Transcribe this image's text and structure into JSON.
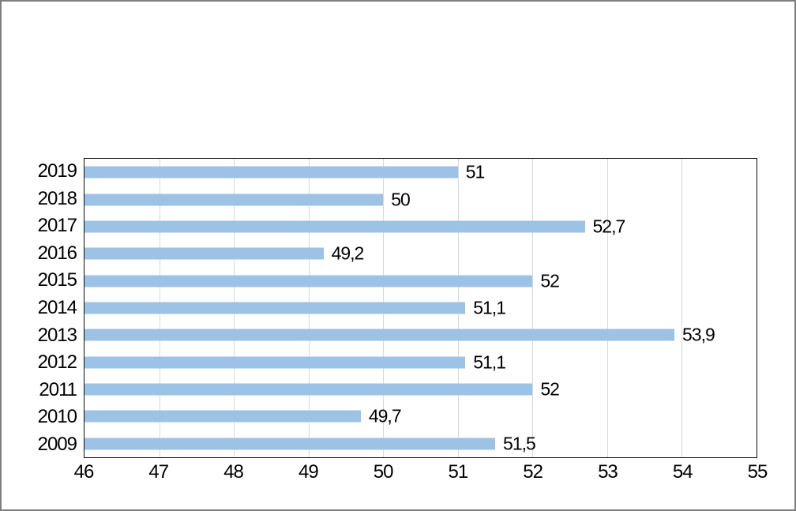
{
  "figure": {
    "background": "#ffffff",
    "outer_border_color": "#7f7f7f"
  },
  "chart_data": {
    "type": "bar",
    "orientation": "horizontal",
    "title": "",
    "xlabel": "",
    "ylabel": "",
    "categories": [
      "2019",
      "2018",
      "2017",
      "2016",
      "2015",
      "2014",
      "2013",
      "2012",
      "2011",
      "2010",
      "2009"
    ],
    "values": [
      51,
      50,
      52.7,
      49.2,
      52,
      51.1,
      53.9,
      51.1,
      52,
      49.7,
      51.5
    ],
    "value_labels": [
      "51",
      "50",
      "52,7",
      "49,2",
      "52",
      "51,1",
      "53,9",
      "51,1",
      "52",
      "49,7",
      "51,5"
    ],
    "xlim": [
      46,
      55
    ],
    "x_tick_labels": [
      "46",
      "47",
      "48",
      "49",
      "50",
      "51",
      "52",
      "53",
      "54",
      "55"
    ],
    "grid": "vertical",
    "legend": false,
    "bar_color": "#9cc2e5",
    "gridline_color": "#d9d9d9",
    "axis_border_color": "#0d0d0d",
    "label_color": "#000000"
  }
}
